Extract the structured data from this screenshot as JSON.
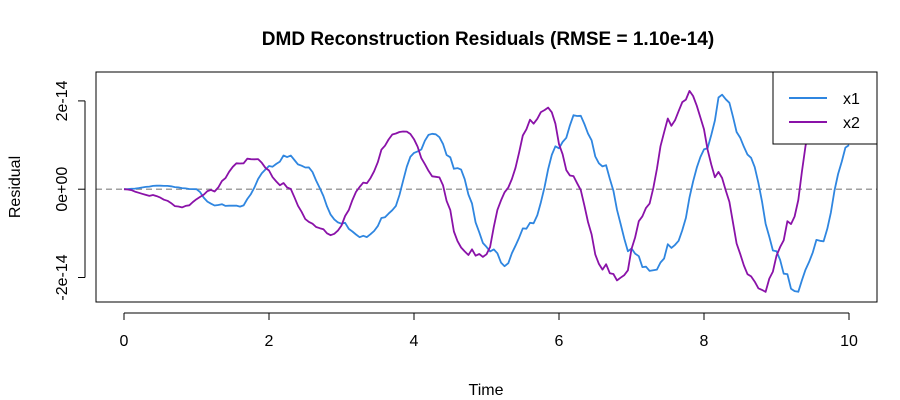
{
  "chart_data": {
    "type": "line",
    "title": "DMD Reconstruction Residuals (RMSE = 1.10e-14)",
    "xlabel": "Time",
    "ylabel": "Residual",
    "xlim": [
      0,
      10
    ],
    "ylim": [
      -2.6e-14,
      2.7e-14
    ],
    "x_ticks": [
      0,
      2,
      4,
      6,
      8,
      10
    ],
    "x_tick_labels": [
      "0",
      "2",
      "4",
      "6",
      "8",
      "10"
    ],
    "y_ticks": [
      -2e-14,
      0,
      2e-14
    ],
    "y_tick_labels": [
      "-2e-14",
      "0e+00",
      "2e-14"
    ],
    "reference_line": {
      "y": 0,
      "style": "dashed",
      "color": "#808080"
    },
    "legend": {
      "position": "top-right"
    },
    "series": [
      {
        "name": "x1",
        "color": "#2f86e0",
        "points": [
          [
            0,
            0
          ],
          [
            0.5,
            8e-16
          ],
          [
            1.0,
            0
          ],
          [
            1.2,
            -3.5e-15
          ],
          [
            1.6,
            -3.8e-15
          ],
          [
            2.0,
            5e-15
          ],
          [
            2.25,
            7.5e-15
          ],
          [
            2.5,
            5e-15
          ],
          [
            3.0,
            -8e-15
          ],
          [
            3.3,
            -1.1e-14
          ],
          [
            3.7,
            -5e-15
          ],
          [
            4.0,
            8e-15
          ],
          [
            4.25,
            1.3e-14
          ],
          [
            4.6,
            5e-15
          ],
          [
            5.0,
            -1.3e-14
          ],
          [
            5.25,
            -1.65e-14
          ],
          [
            5.6,
            -8e-15
          ],
          [
            6.0,
            1e-14
          ],
          [
            6.25,
            1.75e-14
          ],
          [
            6.6,
            6e-15
          ],
          [
            7.0,
            -1.4e-14
          ],
          [
            7.25,
            -1.9e-14
          ],
          [
            7.6,
            -1.2e-14
          ],
          [
            8.0,
            8e-15
          ],
          [
            8.25,
            2.1e-14
          ],
          [
            8.6,
            8e-15
          ],
          [
            9.0,
            -1.5e-14
          ],
          [
            9.25,
            -2.35e-14
          ],
          [
            9.6,
            -1.2e-14
          ],
          [
            10.0,
            1e-14
          ]
        ]
      },
      {
        "name": "x2",
        "color": "#8a12a8",
        "points": [
          [
            0,
            0
          ],
          [
            0.4,
            -1.5e-15
          ],
          [
            0.8,
            -4e-15
          ],
          [
            1.2,
            -5e-16
          ],
          [
            1.6,
            6e-15
          ],
          [
            1.8,
            7e-15
          ],
          [
            2.2,
            1e-15
          ],
          [
            2.6,
            -8e-15
          ],
          [
            2.9,
            -1e-14
          ],
          [
            3.3,
            1e-15
          ],
          [
            3.7,
            1.2e-14
          ],
          [
            3.9,
            1.25e-14
          ],
          [
            4.3,
            3e-15
          ],
          [
            4.7,
            -1.4e-14
          ],
          [
            4.95,
            -1.55e-14
          ],
          [
            5.3,
            1e-15
          ],
          [
            5.6,
            1.5e-14
          ],
          [
            5.8,
            1.9e-14
          ],
          [
            6.2,
            3e-15
          ],
          [
            6.6,
            -1.7e-14
          ],
          [
            6.85,
            -2e-14
          ],
          [
            7.2,
            -5e-15
          ],
          [
            7.5,
            1.5e-14
          ],
          [
            7.8,
            2.2e-14
          ],
          [
            8.2,
            3e-15
          ],
          [
            8.6,
            -1.9e-14
          ],
          [
            8.8,
            -2.4e-14
          ],
          [
            9.2,
            -8e-15
          ],
          [
            9.5,
            1.5e-14
          ]
        ]
      }
    ]
  }
}
